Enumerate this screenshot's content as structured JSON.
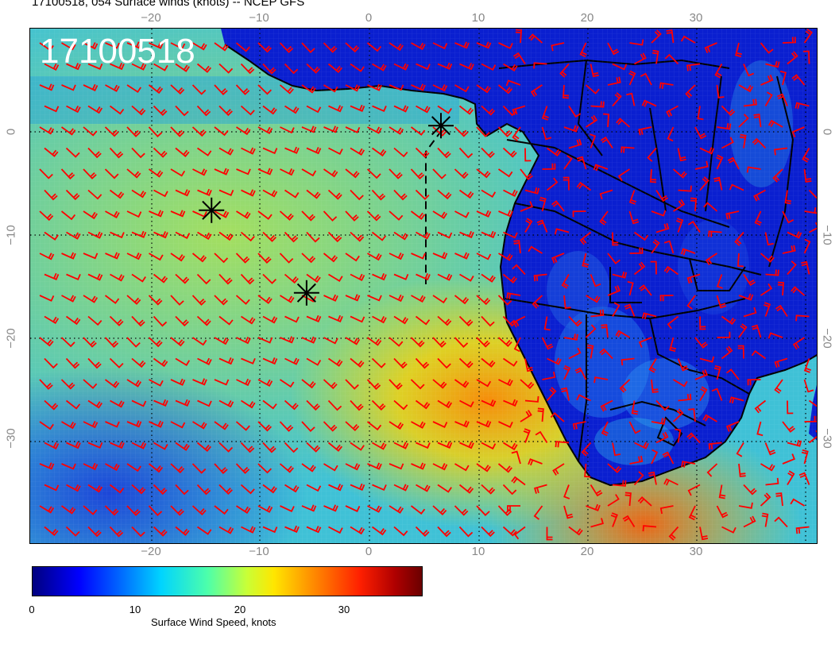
{
  "header": {
    "title": "17100518, 054 Surface winds (knots) -- NCEP GFS"
  },
  "map": {
    "stamp": "17100518",
    "lon_ticks_top": [
      "−20",
      "−10",
      "0",
      "10",
      "20",
      "30"
    ],
    "lon_ticks_bottom": [
      "−20",
      "−10",
      "0",
      "10",
      "20",
      "30"
    ],
    "lat_ticks_left": [
      "0",
      "−10",
      "−20",
      "−30"
    ],
    "lat_ticks_right": [
      "0",
      "−10",
      "−20",
      "−30"
    ],
    "barb_color": "#ff0000",
    "land_color": "#0a1fd0",
    "ocean_color": "#3fc1d6",
    "markers": [
      {
        "lon": 6.5,
        "lat": 0.2,
        "symbol": "asterisk"
      },
      {
        "lon": -14.5,
        "lat": -8.0,
        "symbol": "asterisk"
      },
      {
        "lon": -5.8,
        "lat": -16.0,
        "symbol": "asterisk"
      }
    ]
  },
  "colorbar": {
    "ticks": [
      "0",
      "10",
      "20",
      "30"
    ],
    "label": "Surface Wind Speed, knots",
    "range": [
      0,
      38
    ],
    "colormap": "jet"
  }
}
